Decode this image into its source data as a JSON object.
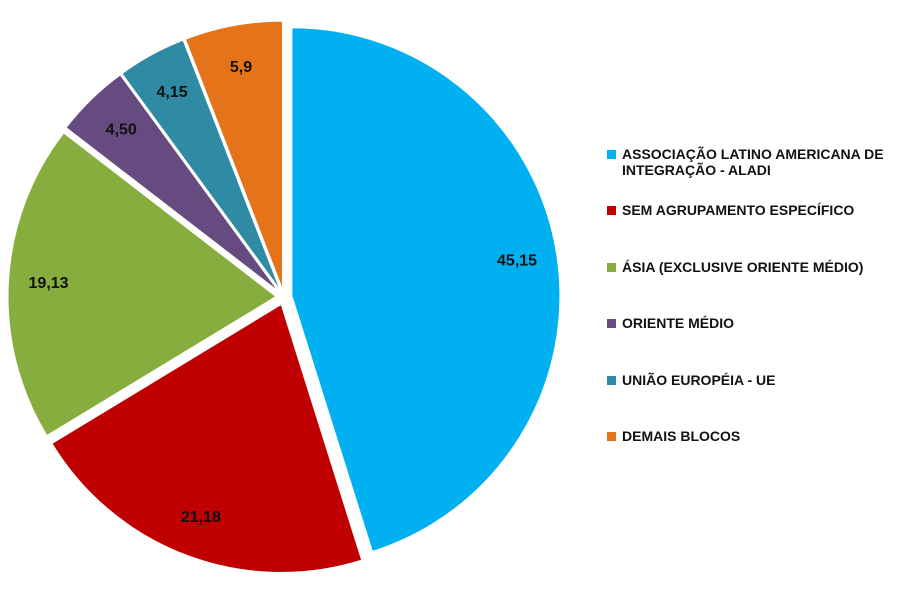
{
  "chart_data": {
    "type": "pie",
    "categories": [
      "ASSOCIAÇÃO LATINO AMERICANA DE INTEGRAÇÃO - ALADI",
      "SEM AGRUPAMENTO ESPECÍFICO",
      "ÁSIA (EXCLUSIVE ORIENTE MÉDIO)",
      "ORIENTE MÉDIO",
      "UNIÃO EUROPÉIA - UE",
      "DEMAIS BLOCOS"
    ],
    "values": [
      45.15,
      21.18,
      19.13,
      4.5,
      4.15,
      5.9
    ],
    "value_labels": [
      "45,15",
      "21,18",
      "19,13",
      "4,50",
      "4,15",
      "5,9"
    ],
    "colors": [
      "#00b0f0",
      "#c00000",
      "#86ad3e",
      "#654b80",
      "#2f8aa3",
      "#e4731a"
    ],
    "legend": "right"
  }
}
